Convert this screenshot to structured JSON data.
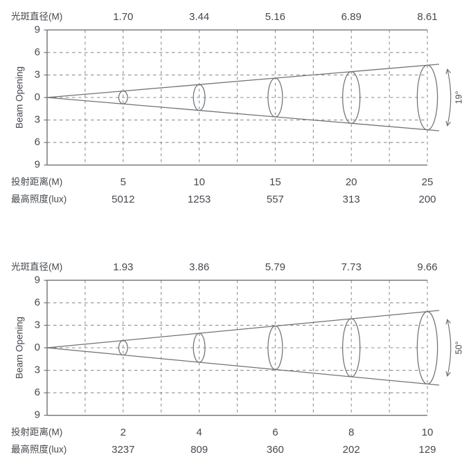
{
  "colors": {
    "text": "#45494f",
    "axis": "#6e7276",
    "grid": "#8b8e92",
    "cone": "#6e7276",
    "ellipse": "#6e7276",
    "arrow": "#6e7276"
  },
  "chart_data": [
    {
      "type": "line",
      "subtype": "beam-cone-photometric-diagram",
      "title": "",
      "beam_angle_label": "19°",
      "beam_angle_deg": 19,
      "header": {
        "label": "光斑直径(M)",
        "values": [
          "1.70",
          "3.44",
          "5.16",
          "6.89",
          "8.61"
        ]
      },
      "ylabel": "Beam Opening",
      "y_ticks_display": [
        "9",
        "6",
        "3",
        "0",
        "3",
        "6",
        "9"
      ],
      "ylim": [
        -9,
        9
      ],
      "grid": "dashed",
      "x_gridline_count": 10,
      "rows": [
        {
          "label": "投射距离(M)",
          "values": [
            "5",
            "10",
            "15",
            "20",
            "25"
          ]
        },
        {
          "label": "最高照度(lux)",
          "values": [
            "5012",
            "1253",
            "557",
            "313",
            "200"
          ]
        }
      ],
      "distances_m": [
        5,
        10,
        15,
        20,
        25
      ],
      "spot_diameters_m": [
        1.7,
        3.44,
        5.16,
        6.89,
        8.61
      ],
      "max_illuminance_lux": [
        5012,
        1253,
        557,
        313,
        200
      ]
    },
    {
      "type": "line",
      "subtype": "beam-cone-photometric-diagram",
      "title": "",
      "beam_angle_label": "50°",
      "beam_angle_deg": 50,
      "header": {
        "label": "光斑直径(M)",
        "values": [
          "1.93",
          "3.86",
          "5.79",
          "7.73",
          "9.66"
        ]
      },
      "ylabel": "Beam Opening",
      "y_ticks_display": [
        "9",
        "6",
        "3",
        "0",
        "3",
        "6",
        "9"
      ],
      "ylim": [
        -9,
        9
      ],
      "grid": "dashed",
      "x_gridline_count": 10,
      "rows": [
        {
          "label": "投射距离(M)",
          "values": [
            "2",
            "4",
            "6",
            "8",
            "10"
          ]
        },
        {
          "label": "最高照度(lux)",
          "values": [
            "3237",
            "809",
            "360",
            "202",
            "129"
          ]
        }
      ],
      "distances_m": [
        2,
        4,
        6,
        8,
        10
      ],
      "spot_diameters_m": [
        1.93,
        3.86,
        5.79,
        7.73,
        9.66
      ],
      "max_illuminance_lux": [
        3237,
        809,
        360,
        202,
        129
      ]
    }
  ]
}
